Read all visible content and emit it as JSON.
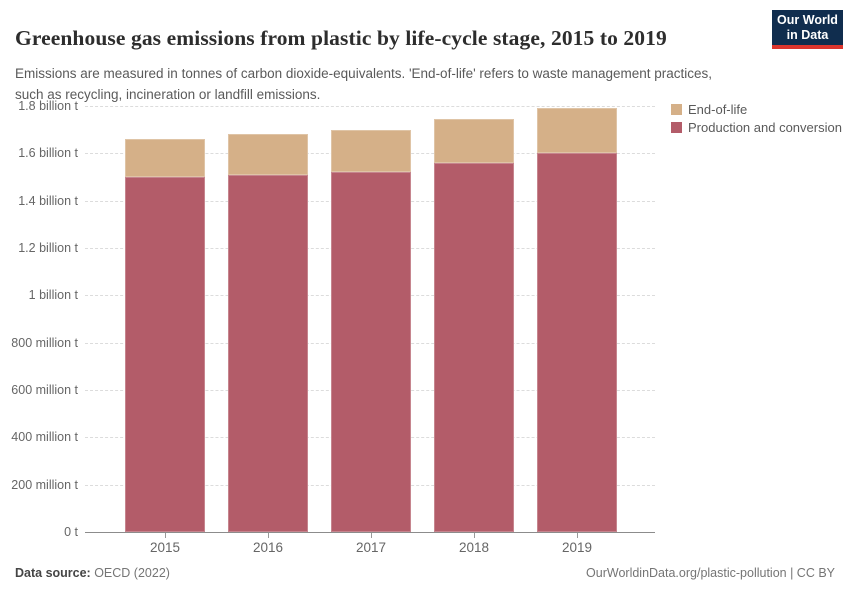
{
  "header": {
    "title": "Greenhouse gas emissions from plastic by life-cycle stage, 2015 to 2019",
    "subtitle": "Emissions are measured in tonnes of carbon dioxide-equivalents. 'End-of-life' refers to waste management practices, such as recycling, incineration or landfill emissions.",
    "logo": {
      "line1": "Our World",
      "line2": "in Data",
      "background_color": "#102d4e",
      "accent_color": "#dc352d"
    }
  },
  "chart_data": {
    "type": "bar",
    "stacked": true,
    "title": "Greenhouse gas emissions from plastic by life-cycle stage, 2015 to 2019",
    "unit": "tonnes of carbon dioxide-equivalents",
    "categories": [
      "2015",
      "2016",
      "2017",
      "2018",
      "2019"
    ],
    "series": [
      {
        "name": "End-of-life",
        "color": "#d5b088",
        "values_billion_t": [
          0.16,
          0.17,
          0.18,
          0.185,
          0.19
        ]
      },
      {
        "name": "Production and conversion",
        "color": "#b35c69",
        "values_billion_t": [
          1.5,
          1.51,
          1.52,
          1.56,
          1.6
        ]
      }
    ],
    "totals_billion_t": [
      1.66,
      1.68,
      1.7,
      1.745,
      1.79
    ],
    "ylim_billion_t": [
      0,
      1.8
    ],
    "ytick_step_billion_t": 0.2,
    "ytick_labels": [
      "0 t",
      "200 million t",
      "400 million t",
      "600 million t",
      "800 million t",
      "1 billion t",
      "1.2 billion t",
      "1.4 billion t",
      "1.6 billion t",
      "1.8 billion t"
    ],
    "grid": "horizontal dashed, solid zero baseline",
    "legend_position": "top-right"
  },
  "footer": {
    "source_label": "Data source:",
    "source_value": " OECD (2022)",
    "credit": "OurWorldinData.org/plastic-pollution | CC BY"
  }
}
